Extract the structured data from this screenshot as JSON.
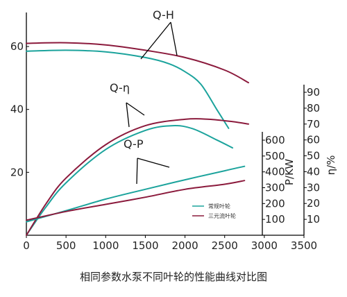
{
  "caption": "相同参数水泵不同叶轮的性能曲线对比图",
  "colors": {
    "standard": "#1ba39c",
    "ternary": "#8b1a3c",
    "axis": "#000000"
  },
  "chart_data": {
    "type": "line",
    "title": "相同参数水泵不同叶轮的性能曲线对比图",
    "xlabel": "",
    "xlim": [
      0,
      3500
    ],
    "x_ticks": [
      0,
      500,
      1000,
      1500,
      2000,
      2500,
      3000,
      3500
    ],
    "grid": false,
    "axes": {
      "left": {
        "label": "",
        "range": [
          0,
          65
        ],
        "ticks": [
          20,
          40,
          60
        ]
      },
      "power": {
        "label": "P/KW",
        "range": [
          0,
          630
        ],
        "ticks": [
          100,
          200,
          300,
          400,
          500,
          600
        ]
      },
      "eff": {
        "label": "η/%",
        "range": [
          0,
          100
        ],
        "ticks": [
          10,
          20,
          30,
          40,
          50,
          60,
          70,
          80,
          90
        ]
      }
    },
    "legend": {
      "position": "bottom-right",
      "entries": [
        {
          "name": "常规叶轮",
          "color": "#1ba39c"
        },
        {
          "name": "三元流叶轮",
          "color": "#8b1a3c"
        }
      ]
    },
    "curve_labels": [
      {
        "text": "Q-H",
        "anchor": [
          1750,
          61
        ]
      },
      {
        "text": "Q-η",
        "anchor": [
          1400,
          40
        ]
      },
      {
        "text": "Q-P",
        "anchor": [
          1450,
          22
        ]
      }
    ],
    "series": [
      {
        "name": "常规叶轮",
        "curve": "Q-H",
        "color": "#1ba39c",
        "x": [
          0,
          500,
          1000,
          1500,
          1800,
          2000,
          2200,
          2400,
          2550
        ],
        "y": [
          58.5,
          58.8,
          58.3,
          56.5,
          54.5,
          52.0,
          48.0,
          40.0,
          34.0
        ]
      },
      {
        "name": "三元流叶轮",
        "curve": "Q-H",
        "color": "#8b1a3c",
        "x": [
          0,
          500,
          1000,
          1500,
          2000,
          2500,
          2800
        ],
        "y": [
          61.0,
          61.2,
          60.5,
          58.8,
          56.5,
          52.5,
          48.5
        ]
      },
      {
        "name": "常规叶轮",
        "curve": "Q-η",
        "color": "#1ba39c",
        "x": [
          0,
          250,
          500,
          1000,
          1500,
          1850,
          2100,
          2400,
          2600
        ],
        "y": [
          0,
          18,
          33,
          54,
          66,
          69,
          67,
          60,
          55
        ]
      },
      {
        "name": "三元流叶轮",
        "curve": "Q-η",
        "color": "#8b1a3c",
        "x": [
          0,
          250,
          500,
          1000,
          1500,
          2000,
          2300,
          2600,
          2800
        ],
        "y": [
          0,
          20,
          36,
          57,
          69,
          73,
          73,
          71.5,
          70
        ]
      },
      {
        "name": "常规叶轮",
        "curve": "Q-P",
        "color": "#1ba39c",
        "x": [
          0,
          500,
          1000,
          1500,
          2000,
          2500,
          2750
        ],
        "y": [
          85,
          155,
          228,
          290,
          350,
          407,
          435
        ]
      },
      {
        "name": "三元流叶轮",
        "curve": "Q-P",
        "color": "#8b1a3c",
        "x": [
          0,
          500,
          1000,
          1500,
          2000,
          2500,
          2750
        ],
        "y": [
          95,
          150,
          195,
          240,
          290,
          322,
          345
        ]
      }
    ]
  }
}
